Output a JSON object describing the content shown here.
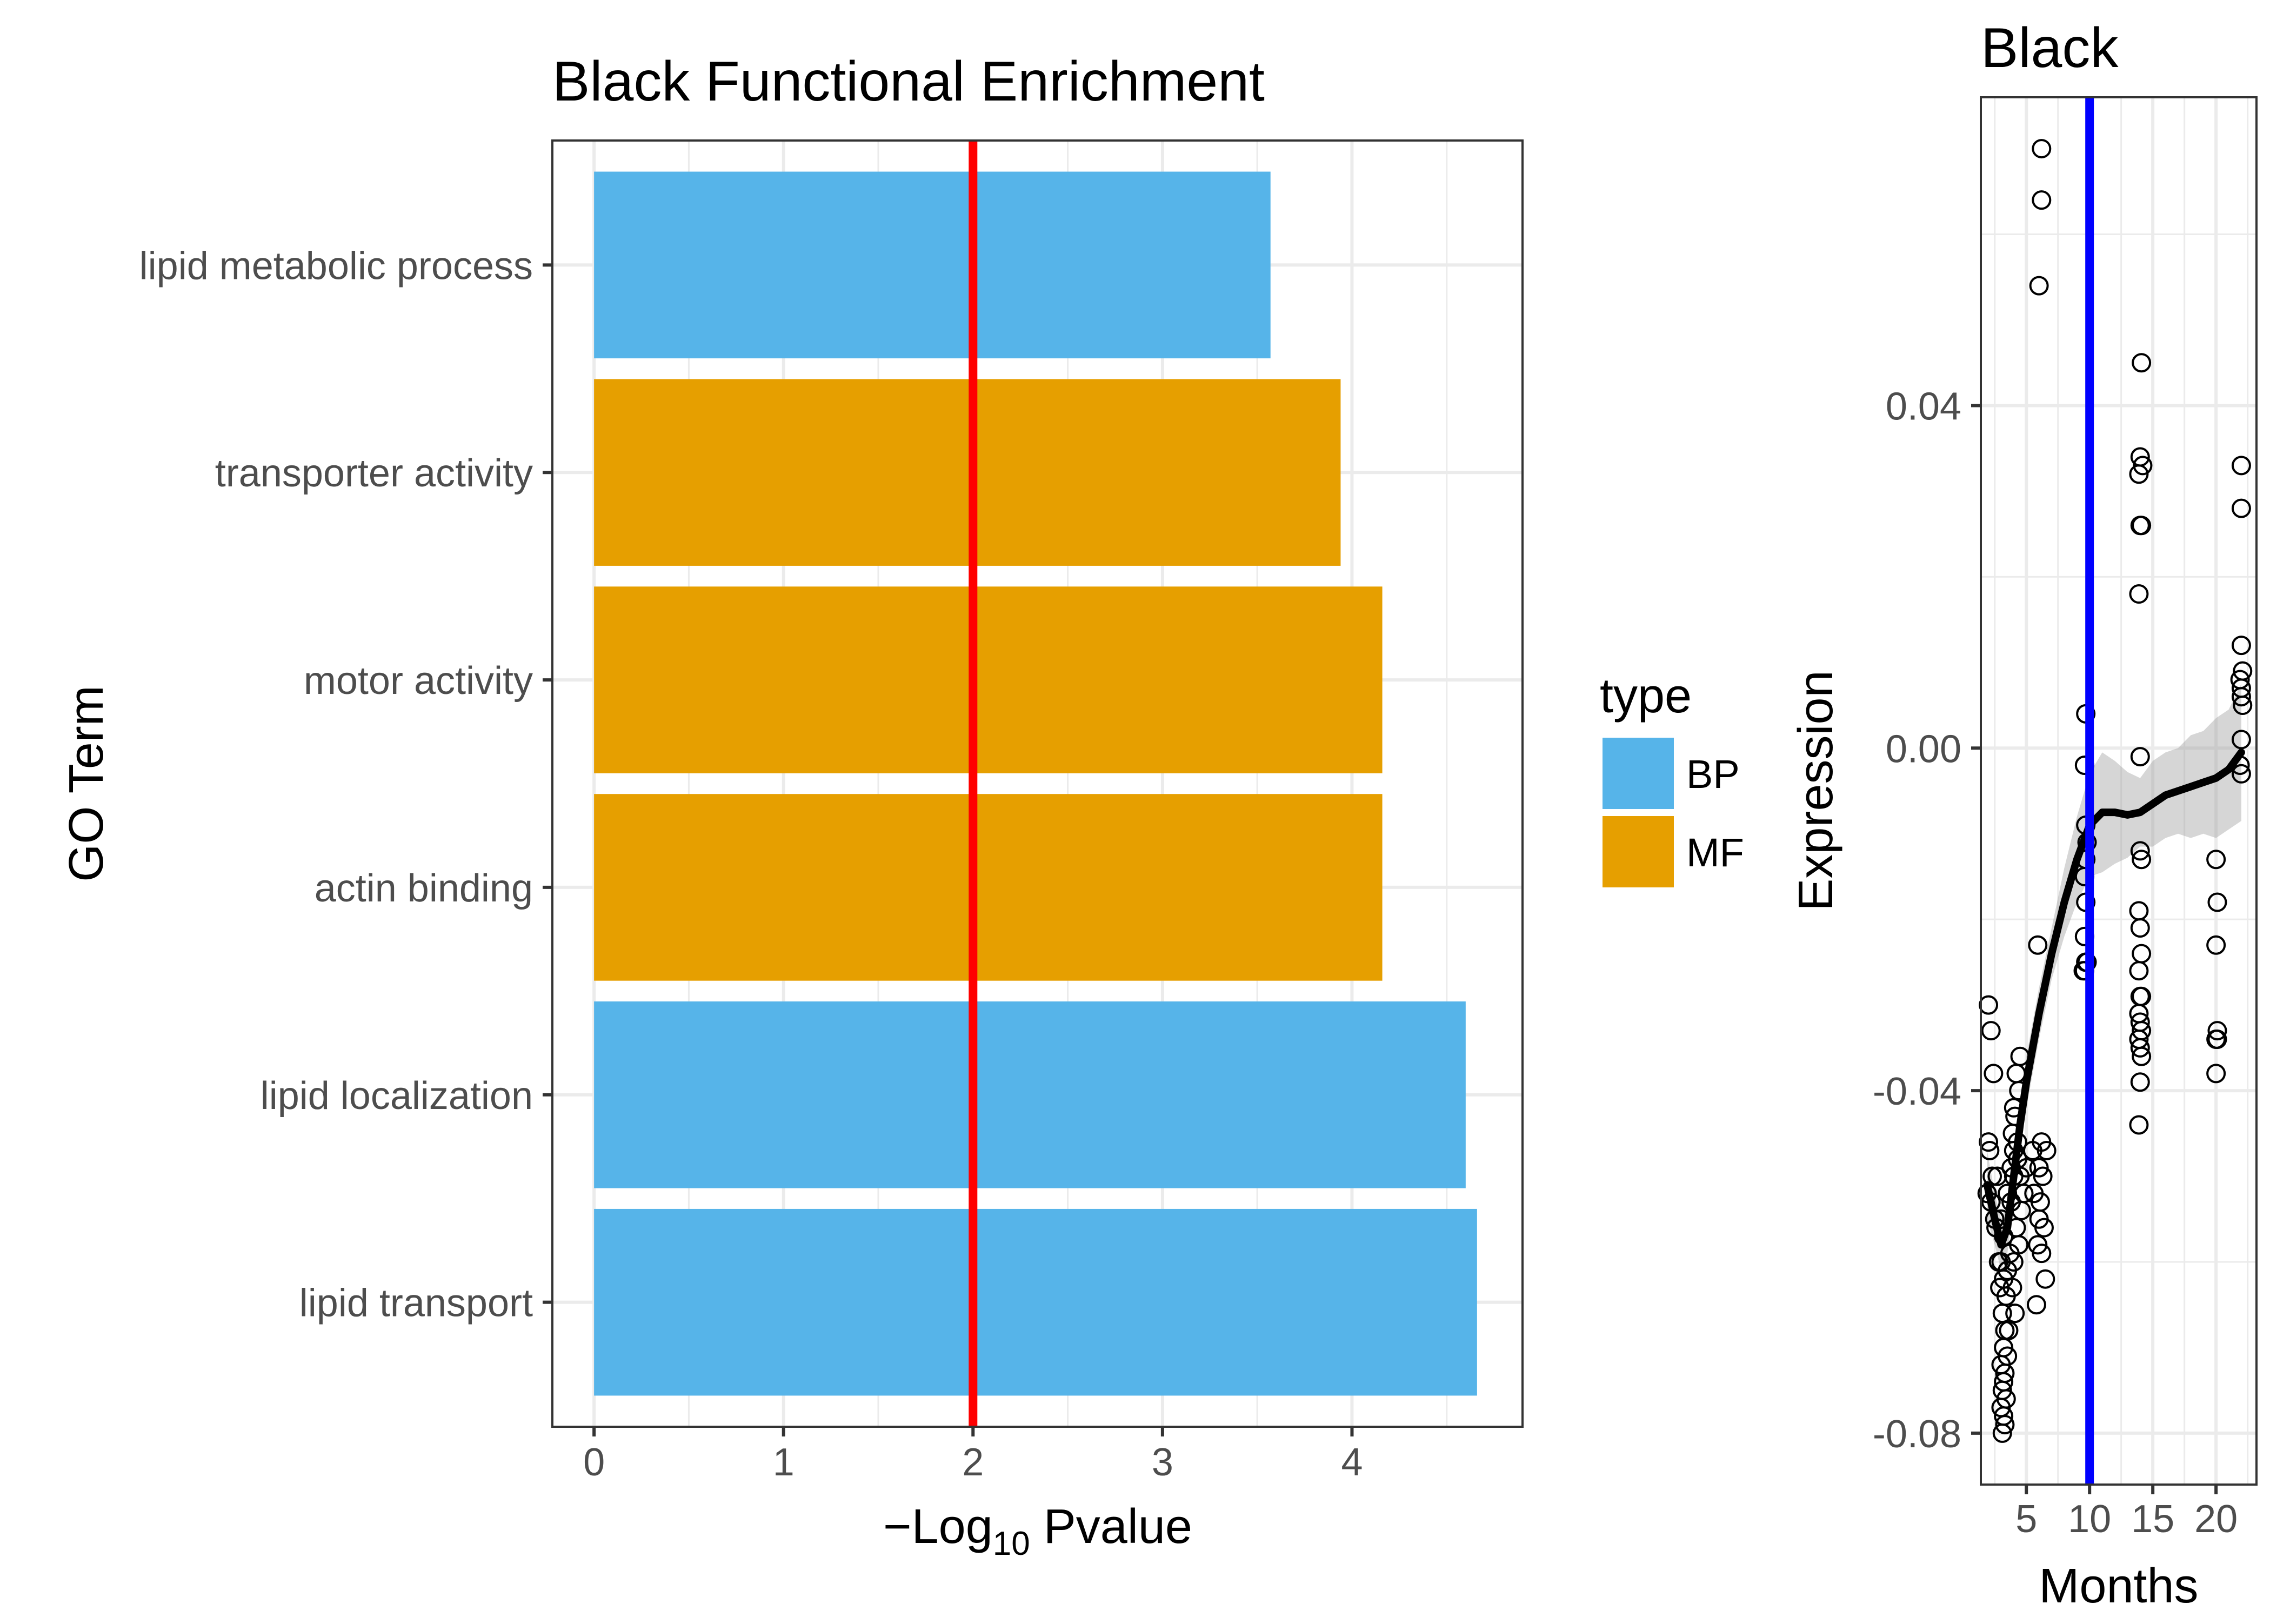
{
  "chart_data": [
    {
      "type": "bar",
      "orientation": "horizontal",
      "title": "Black Functional Enrichment",
      "xlabel": "−Log10 Pvalue",
      "xlabel_parts": {
        "prefix": "−Log",
        "subscript": "10",
        "suffix": " Pvalue"
      },
      "ylabel": "GO Term",
      "xlim": [
        -0.22,
        4.9
      ],
      "xticks": [
        0,
        1,
        2,
        3,
        4
      ],
      "categories": [
        "lipid metabolic process",
        "transporter activity",
        "motor activity",
        "actin binding",
        "lipid localization",
        "lipid transport"
      ],
      "values": [
        3.57,
        3.94,
        4.16,
        4.16,
        4.6,
        4.66
      ],
      "types": [
        "BP",
        "MF",
        "MF",
        "MF",
        "BP",
        "BP"
      ],
      "threshold": {
        "value": 2,
        "color": "#ff0000"
      },
      "legend": {
        "title": "type",
        "entries": [
          {
            "label": "BP",
            "color": "#56B4E9"
          },
          {
            "label": "MF",
            "color": "#E69F00"
          }
        ],
        "placement": "right"
      },
      "grid": true
    },
    {
      "type": "scatter",
      "title": "Black",
      "xlabel": "Months",
      "ylabel": "Expression",
      "xlim": [
        1.4,
        23.2
      ],
      "ylim": [
        -0.086,
        0.076
      ],
      "xticks": [
        5,
        10,
        15,
        20
      ],
      "yticks": [
        -0.08,
        -0.04,
        0.0,
        0.04
      ],
      "ytick_labels": [
        "-0.08",
        "-0.04",
        "0.00",
        "0.04"
      ],
      "vline": {
        "value": 10,
        "color": "#0000ff"
      },
      "points": [
        [
          6.2,
          0.07
        ],
        [
          6.2,
          0.064
        ],
        [
          6.0,
          0.054
        ],
        [
          14.1,
          0.045
        ],
        [
          14.0,
          0.034
        ],
        [
          14.2,
          0.033
        ],
        [
          13.9,
          0.032
        ],
        [
          14.0,
          0.026
        ],
        [
          14.1,
          0.026
        ],
        [
          13.9,
          0.018
        ],
        [
          14.0,
          -0.001
        ],
        [
          14.0,
          -0.012
        ],
        [
          14.1,
          -0.013
        ],
        [
          13.9,
          -0.019
        ],
        [
          14.0,
          -0.021
        ],
        [
          14.1,
          -0.024
        ],
        [
          13.9,
          -0.026
        ],
        [
          14.0,
          -0.029
        ],
        [
          14.1,
          -0.029
        ],
        [
          13.9,
          -0.031
        ],
        [
          14.0,
          -0.032
        ],
        [
          14.1,
          -0.033
        ],
        [
          13.9,
          -0.034
        ],
        [
          14.0,
          -0.035
        ],
        [
          14.1,
          -0.036
        ],
        [
          14.0,
          -0.039
        ],
        [
          13.9,
          -0.044
        ],
        [
          22.0,
          0.033
        ],
        [
          22.0,
          0.028
        ],
        [
          22.0,
          0.012
        ],
        [
          22.1,
          0.009
        ],
        [
          21.9,
          0.008
        ],
        [
          22.0,
          0.007
        ],
        [
          22.0,
          0.006
        ],
        [
          22.1,
          0.005
        ],
        [
          22.0,
          0.001
        ],
        [
          21.9,
          -0.002
        ],
        [
          22.0,
          -0.003
        ],
        [
          20.0,
          -0.013
        ],
        [
          20.1,
          -0.018
        ],
        [
          20.0,
          -0.023
        ],
        [
          20.1,
          -0.033
        ],
        [
          20.0,
          -0.034
        ],
        [
          20.1,
          -0.034
        ],
        [
          20.0,
          -0.038
        ],
        [
          9.7,
          0.004
        ],
        [
          9.6,
          -0.002
        ],
        [
          9.7,
          -0.009
        ],
        [
          9.8,
          -0.011
        ],
        [
          9.7,
          -0.013
        ],
        [
          9.6,
          -0.015
        ],
        [
          9.7,
          -0.018
        ],
        [
          9.6,
          -0.022
        ],
        [
          9.7,
          -0.025
        ],
        [
          9.8,
          -0.025
        ],
        [
          9.6,
          -0.026
        ],
        [
          9.5,
          -0.026
        ],
        [
          5.9,
          -0.023
        ],
        [
          2.0,
          -0.03
        ],
        [
          2.2,
          -0.033
        ],
        [
          2.4,
          -0.038
        ],
        [
          2.0,
          -0.046
        ],
        [
          2.1,
          -0.047
        ],
        [
          2.3,
          -0.05
        ],
        [
          1.9,
          -0.052
        ],
        [
          2.2,
          -0.053
        ],
        [
          2.5,
          -0.055
        ],
        [
          2.7,
          -0.05
        ],
        [
          3.0,
          -0.055
        ],
        [
          3.2,
          -0.057
        ],
        [
          3.5,
          -0.052
        ],
        [
          3.8,
          -0.049
        ],
        [
          4.0,
          -0.047
        ],
        [
          4.3,
          -0.046
        ],
        [
          4.5,
          -0.05
        ],
        [
          4.0,
          -0.042
        ],
        [
          4.2,
          -0.038
        ],
        [
          4.4,
          -0.04
        ],
        [
          4.1,
          -0.043
        ],
        [
          3.9,
          -0.045
        ],
        [
          4.5,
          -0.036
        ],
        [
          4.3,
          -0.048
        ],
        [
          4.0,
          -0.05
        ],
        [
          3.8,
          -0.053
        ],
        [
          4.2,
          -0.056
        ],
        [
          4.4,
          -0.058
        ],
        [
          4.0,
          -0.06
        ],
        [
          3.9,
          -0.063
        ],
        [
          4.1,
          -0.066
        ],
        [
          5.5,
          -0.047
        ],
        [
          6.0,
          -0.049
        ],
        [
          6.3,
          -0.05
        ],
        [
          6.6,
          -0.047
        ],
        [
          6.1,
          -0.053
        ],
        [
          6.0,
          -0.055
        ],
        [
          6.4,
          -0.056
        ],
        [
          5.9,
          -0.058
        ],
        [
          6.2,
          -0.059
        ],
        [
          6.5,
          -0.062
        ],
        [
          5.8,
          -0.065
        ],
        [
          5.6,
          -0.052
        ],
        [
          6.2,
          -0.046
        ],
        [
          3.0,
          -0.06
        ],
        [
          3.2,
          -0.062
        ],
        [
          3.4,
          -0.064
        ],
        [
          3.1,
          -0.066
        ],
        [
          3.3,
          -0.068
        ],
        [
          3.2,
          -0.07
        ],
        [
          3.0,
          -0.072
        ],
        [
          3.3,
          -0.073
        ],
        [
          3.2,
          -0.074
        ],
        [
          3.1,
          -0.075
        ],
        [
          3.4,
          -0.076
        ],
        [
          3.0,
          -0.077
        ],
        [
          3.2,
          -0.078
        ],
        [
          3.3,
          -0.079
        ],
        [
          3.1,
          -0.08
        ],
        [
          3.5,
          -0.071
        ],
        [
          3.6,
          -0.068
        ],
        [
          2.9,
          -0.063
        ],
        [
          2.8,
          -0.06
        ],
        [
          3.5,
          -0.061
        ],
        [
          3.7,
          -0.059
        ],
        [
          2.6,
          -0.056
        ],
        [
          4.6,
          -0.054
        ],
        [
          4.8,
          -0.052
        ],
        [
          5.0,
          -0.049
        ]
      ],
      "smooth": [
        [
          1.9,
          -0.051
        ],
        [
          2.5,
          -0.055
        ],
        [
          3.0,
          -0.058
        ],
        [
          3.5,
          -0.056
        ],
        [
          4.0,
          -0.05
        ],
        [
          4.5,
          -0.044
        ],
        [
          5.0,
          -0.039
        ],
        [
          5.5,
          -0.035
        ],
        [
          6.0,
          -0.031
        ],
        [
          7.0,
          -0.024
        ],
        [
          8.0,
          -0.018
        ],
        [
          9.0,
          -0.013
        ],
        [
          10.0,
          -0.009
        ],
        [
          11.0,
          -0.0075
        ],
        [
          12.0,
          -0.0075
        ],
        [
          13.0,
          -0.0078
        ],
        [
          14.0,
          -0.0075
        ],
        [
          15.0,
          -0.0065
        ],
        [
          16.0,
          -0.0055
        ],
        [
          17.0,
          -0.005
        ],
        [
          18.0,
          -0.0045
        ],
        [
          19.0,
          -0.004
        ],
        [
          20.0,
          -0.0035
        ],
        [
          21.0,
          -0.0025
        ],
        [
          22.0,
          -0.0005
        ]
      ],
      "band_halfwidth": [
        0.004,
        0.003,
        0.003,
        0.003,
        0.003,
        0.003,
        0.003,
        0.003,
        0.003,
        0.003,
        0.004,
        0.005,
        0.006,
        0.007,
        0.006,
        0.005,
        0.004,
        0.005,
        0.005,
        0.005,
        0.006,
        0.006,
        0.007,
        0.007,
        0.008
      ],
      "grid": true
    }
  ]
}
